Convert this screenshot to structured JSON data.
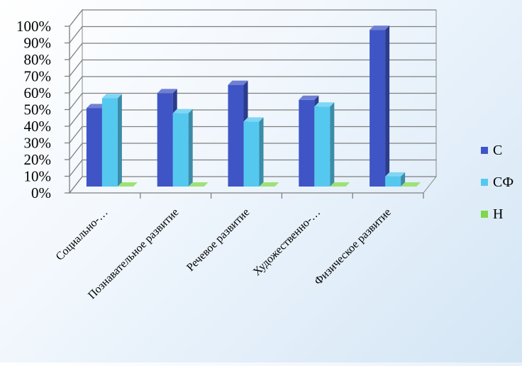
{
  "chart_data": {
    "type": "bar",
    "categories": [
      "Социально-…",
      "Познавательное развитие",
      "Речевое развитие",
      "Художественно-…",
      "Физическое развитие"
    ],
    "series": [
      {
        "name": "С",
        "values": [
          47,
          56,
          61,
          52,
          94
        ],
        "color": "#3f55c6"
      },
      {
        "name": "СФ",
        "values": [
          53,
          44,
          39,
          48,
          6
        ],
        "color": "#55c8f0"
      },
      {
        "name": "Н",
        "values": [
          0,
          0,
          0,
          0,
          0
        ],
        "color": "#7ed84a"
      }
    ],
    "ylim": [
      0,
      100
    ],
    "yticks": [
      "0%",
      "10%",
      "20%",
      "30%",
      "40%",
      "50%",
      "60%",
      "70%",
      "80%",
      "90%",
      "100%"
    ],
    "grid": true,
    "legend": "right",
    "style": "3d-clustered-column"
  }
}
